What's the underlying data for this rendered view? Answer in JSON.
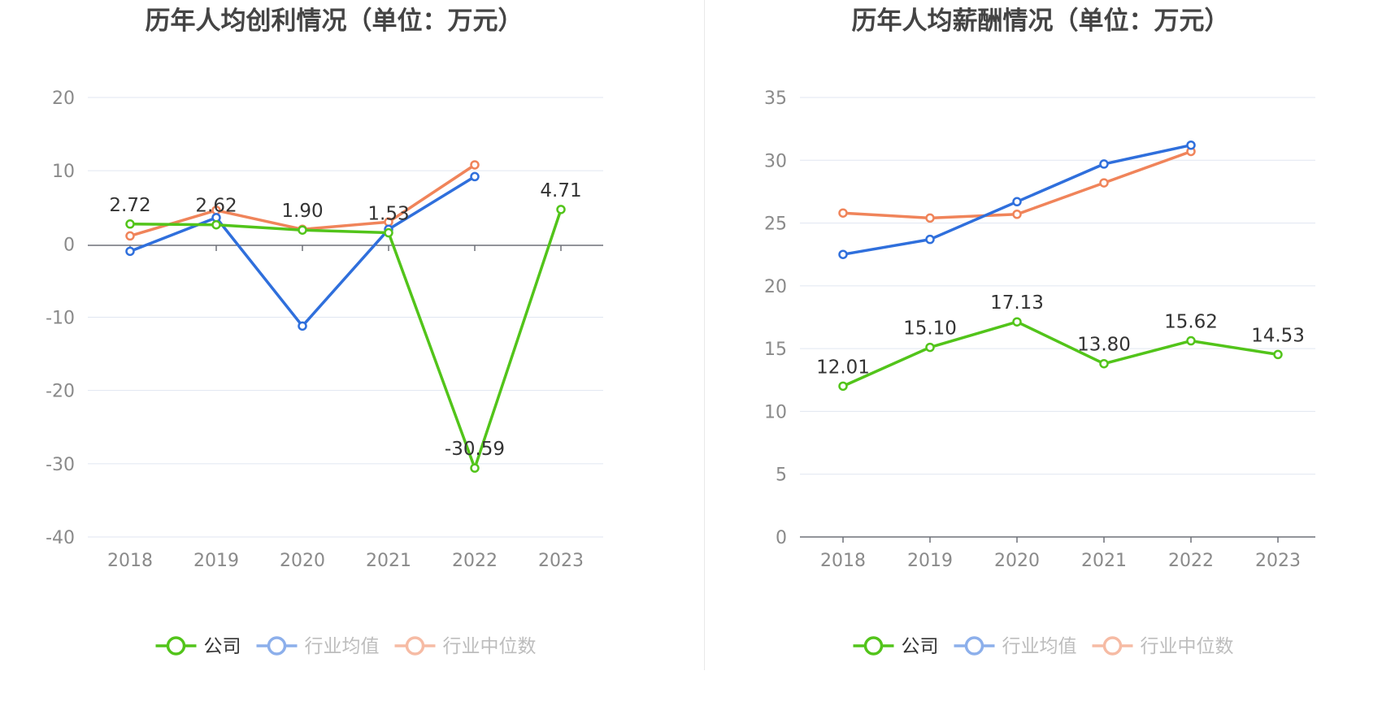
{
  "chart_data": [
    {
      "type": "line",
      "title": "历年人均创利情况（单位：万元）",
      "categories": [
        "2018",
        "2019",
        "2020",
        "2021",
        "2022",
        "2023"
      ],
      "ylim": [
        -40,
        20
      ],
      "yticks": [
        "20",
        "10",
        "0",
        "-10",
        "-20",
        "-30",
        "-40"
      ],
      "xlabel": "",
      "ylabel": "",
      "grid": true,
      "legend_position": "bottom",
      "series": [
        {
          "name": "公司",
          "color": "#52c41a",
          "values": [
            2.72,
            2.62,
            1.9,
            1.53,
            -30.59,
            4.71
          ],
          "labels": [
            "2.72",
            "2.62",
            "1.90",
            "1.53",
            "-30.59",
            "4.71"
          ]
        },
        {
          "name": "行业均值",
          "color": "#2f6fdc",
          "values": [
            -1.0,
            3.6,
            -11.2,
            2.0,
            9.2,
            null
          ]
        },
        {
          "name": "行业中位数",
          "color": "#f0845a",
          "values": [
            1.1,
            4.6,
            2.0,
            3.0,
            10.8,
            null
          ]
        }
      ]
    },
    {
      "type": "line",
      "title": "历年人均薪酬情况（单位：万元）",
      "categories": [
        "2018",
        "2019",
        "2020",
        "2021",
        "2022",
        "2023"
      ],
      "ylim": [
        0,
        35
      ],
      "yticks": [
        "35",
        "30",
        "25",
        "20",
        "15",
        "10",
        "5",
        "0"
      ],
      "xlabel": "",
      "ylabel": "",
      "grid": true,
      "legend_position": "bottom",
      "series": [
        {
          "name": "公司",
          "color": "#52c41a",
          "values": [
            12.01,
            15.1,
            17.13,
            13.8,
            15.62,
            14.53
          ],
          "labels": [
            "12.01",
            "15.10",
            "17.13",
            "13.80",
            "15.62",
            "14.53"
          ]
        },
        {
          "name": "行业均值",
          "color": "#2f6fdc",
          "values": [
            22.5,
            23.7,
            26.7,
            29.7,
            31.2,
            null
          ]
        },
        {
          "name": "行业中位数",
          "color": "#f0845a",
          "values": [
            25.8,
            25.4,
            25.7,
            28.2,
            30.7,
            null
          ]
        }
      ]
    }
  ]
}
